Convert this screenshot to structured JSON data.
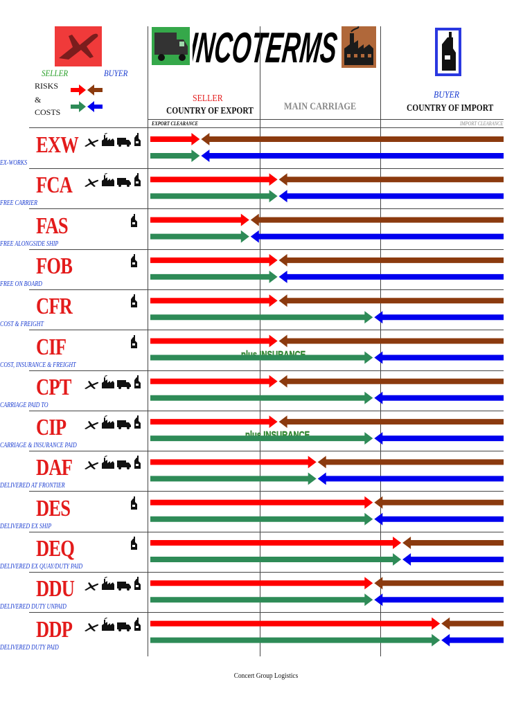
{
  "header": {
    "title": "INCOTERMS",
    "legend": {
      "seller": "SELLER",
      "buyer": "BUYER",
      "risks": "RISKS",
      "amp": "&",
      "costs": "COSTS"
    },
    "columns": {
      "seller_label": "SELLER",
      "export_country": "COUNTRY OF EXPORT",
      "main_carriage": "MAIN CARRIAGE",
      "buyer_label": "BUYER",
      "import_country": "COUNTRY OF IMPORT"
    },
    "export_clearance": "EXPORT CLEARANCE",
    "import_clearance": "IMPORT CLEARANCE"
  },
  "colors": {
    "seller_risk": "#ff0000",
    "buyer_risk": "#8b3a0e",
    "seller_cost": "#2e8b57",
    "buyer_cost": "#0000ee",
    "code": "#e31b1b",
    "full_name": "#1a3cd0"
  },
  "terms": [
    {
      "code": "EXW",
      "name": "EX-WORKS",
      "modes": [
        "plane-icon",
        "factory-icon",
        "truck-icon",
        "ship-crane-icon"
      ],
      "risk": 0.14,
      "cost": 0.14,
      "plus": ""
    },
    {
      "code": "FCA",
      "name": "FREE CARRIER",
      "modes": [
        "plane-icon",
        "factory-icon",
        "truck-icon",
        "ship-crane-icon"
      ],
      "risk": 0.36,
      "cost": 0.36,
      "plus": ""
    },
    {
      "code": "FAS",
      "name": "FREE ALONGSIDE SHIP",
      "modes": [
        "ship-crane-icon"
      ],
      "risk": 0.28,
      "cost": 0.28,
      "plus": ""
    },
    {
      "code": "FOB",
      "name": "FREE ON BOARD",
      "modes": [
        "ship-crane-icon"
      ],
      "risk": 0.36,
      "cost": 0.36,
      "plus": ""
    },
    {
      "code": "CFR",
      "name": "COST & FREIGHT",
      "modes": [
        "ship-crane-icon"
      ],
      "risk": 0.36,
      "cost": 0.63,
      "plus": ""
    },
    {
      "code": "CIF",
      "name": "COST, INSURANCE & FREIGHT",
      "modes": [
        "ship-crane-icon"
      ],
      "risk": 0.36,
      "cost": 0.63,
      "plus": "plus INSURANCE"
    },
    {
      "code": "CPT",
      "name": "CARRIAGE PAID TO",
      "modes": [
        "plane-icon",
        "factory-icon",
        "truck-icon",
        "ship-crane-icon"
      ],
      "risk": 0.36,
      "cost": 0.63,
      "plus": ""
    },
    {
      "code": "CIP",
      "name": "CARRIAGE & INSURANCE PAID",
      "modes": [
        "plane-icon",
        "factory-icon",
        "truck-icon",
        "ship-crane-icon"
      ],
      "risk": 0.36,
      "cost": 0.63,
      "plus": "plus INSURANCE"
    },
    {
      "code": "DAF",
      "name": "DELIVERED AT FRONTIER",
      "modes": [
        "plane-icon",
        "factory-icon",
        "truck-icon",
        "ship-crane-icon"
      ],
      "risk": 0.47,
      "cost": 0.47,
      "plus": ""
    },
    {
      "code": "DES",
      "name": "DELIVERED EX SHIP",
      "modes": [
        "ship-crane-icon"
      ],
      "risk": 0.63,
      "cost": 0.63,
      "plus": ""
    },
    {
      "code": "DEQ",
      "name": "DELIVERED EX QUAY/DUTY PAID",
      "modes": [
        "ship-crane-icon"
      ],
      "risk": 0.71,
      "cost": 0.71,
      "plus": ""
    },
    {
      "code": "DDU",
      "name": "DELIVERED DUTY UNPAID",
      "modes": [
        "plane-icon",
        "factory-icon",
        "truck-icon",
        "ship-crane-icon"
      ],
      "risk": 0.63,
      "cost": 0.63,
      "plus": ""
    },
    {
      "code": "DDP",
      "name": "DELIVERED DUTY PAID",
      "modes": [
        "plane-icon",
        "factory-icon",
        "truck-icon",
        "ship-crane-icon"
      ],
      "risk": 0.82,
      "cost": 0.82,
      "plus": ""
    }
  ],
  "footer": "Concert Group Logistics"
}
